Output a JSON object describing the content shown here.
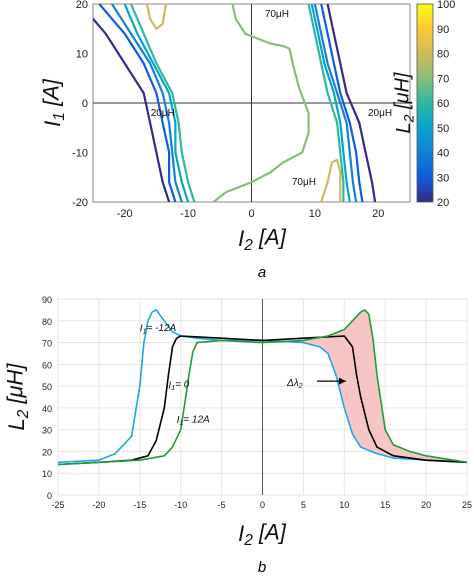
{
  "chart_data": [
    {
      "type": "contour",
      "panel_label": "a",
      "xlabel": "I2 [A]",
      "ylabel": "I1 [A]",
      "colorbar_label": "L2 [μH]",
      "xlim": [
        -25,
        25
      ],
      "ylim": [
        -20,
        20
      ],
      "xticks": [
        -20,
        -10,
        0,
        10,
        20
      ],
      "yticks": [
        -20,
        -10,
        0,
        10,
        20
      ],
      "colorbar_ticks": [
        20,
        30,
        40,
        50,
        60,
        70,
        80,
        90,
        100
      ],
      "colorbar_range": [
        20,
        100
      ],
      "colormap": [
        "#352a87",
        "#0f5cdd",
        "#1481d6",
        "#06a4ca",
        "#2eb7a4",
        "#87bf77",
        "#d1bb59",
        "#fec832",
        "#f9fb0e"
      ],
      "annotations": [
        {
          "text": "70μH",
          "x": -2,
          "y": 18
        },
        {
          "text": "20μH",
          "x": -20,
          "y": -2
        },
        {
          "text": "20μH",
          "x": 19,
          "y": -2
        },
        {
          "text": "70μH",
          "x": 7,
          "y": -16
        }
      ],
      "contours": [
        {
          "level": 20,
          "color": "#352a87",
          "points": [
            [
              -27,
              20
            ],
            [
              -23,
              14
            ],
            [
              -20,
              8
            ],
            [
              -17,
              2
            ],
            [
              -16,
              -4
            ],
            [
              -15,
              -10
            ],
            [
              -14,
              -16
            ],
            [
              -13,
              -20
            ]
          ]
        },
        {
          "level": 30,
          "color": "#0f5cdd",
          "points": [
            [
              -24,
              20
            ],
            [
              -20,
              14
            ],
            [
              -17,
              8
            ],
            [
              -15,
              2
            ],
            [
              -14,
              -4
            ],
            [
              -13,
              -10
            ],
            [
              -13,
              -16
            ],
            [
              -12,
              -20
            ]
          ]
        },
        {
          "level": 40,
          "color": "#1481d6",
          "points": [
            [
              -22,
              20
            ],
            [
              -19,
              14
            ],
            [
              -16,
              8
            ],
            [
              -14,
              2
            ],
            [
              -13,
              -4
            ],
            [
              -12.5,
              -10
            ],
            [
              -12,
              -16
            ],
            [
              -11,
              -20
            ]
          ]
        },
        {
          "level": 50,
          "color": "#06a4ca",
          "points": [
            [
              -20,
              20
            ],
            [
              -18,
              14
            ],
            [
              -15.5,
              8
            ],
            [
              -13,
              2
            ],
            [
              -12,
              -4
            ],
            [
              -12,
              -10
            ],
            [
              -11,
              -16
            ],
            [
              -10,
              -20
            ]
          ]
        },
        {
          "level": 60,
          "color": "#2eb7a4",
          "points": [
            [
              -19,
              20
            ],
            [
              -17,
              14
            ],
            [
              -15,
              8
            ],
            [
              -12.5,
              2
            ],
            [
              -11.5,
              -4
            ],
            [
              -11,
              -10
            ],
            [
              -10,
              -16
            ],
            [
              -9,
              -20
            ]
          ]
        },
        {
          "level": 20,
          "color": "#352a87",
          "points": [
            [
              12,
              20
            ],
            [
              13,
              14
            ],
            [
              14,
              8
            ],
            [
              15,
              2
            ],
            [
              17,
              -4
            ],
            [
              18,
              -10
            ],
            [
              19,
              -16
            ],
            [
              19.5,
              -20
            ]
          ]
        },
        {
          "level": 30,
          "color": "#0f5cdd",
          "points": [
            [
              11,
              20
            ],
            [
              12,
              14
            ],
            [
              13,
              8
            ],
            [
              14,
              2
            ],
            [
              15.5,
              -4
            ],
            [
              16.5,
              -10
            ],
            [
              17,
              -16
            ],
            [
              17.5,
              -20
            ]
          ]
        },
        {
          "level": 40,
          "color": "#1481d6",
          "points": [
            [
              10,
              20
            ],
            [
              11,
              14
            ],
            [
              12,
              8
            ],
            [
              13.5,
              2
            ],
            [
              15,
              -4
            ],
            [
              15.5,
              -10
            ],
            [
              16,
              -16
            ],
            [
              16.5,
              -20
            ]
          ]
        },
        {
          "level": 50,
          "color": "#06a4ca",
          "points": [
            [
              9.5,
              20
            ],
            [
              10.5,
              14
            ],
            [
              11.5,
              8
            ],
            [
              13,
              2
            ],
            [
              14,
              -4
            ],
            [
              14.5,
              -10
            ],
            [
              15,
              -16
            ],
            [
              15.5,
              -20
            ]
          ]
        },
        {
          "level": 60,
          "color": "#2eb7a4",
          "points": [
            [
              9,
              20
            ],
            [
              10,
              14
            ],
            [
              11,
              8
            ],
            [
              12,
              2
            ],
            [
              13.5,
              -4
            ],
            [
              14,
              -10
            ],
            [
              14.5,
              -16
            ],
            [
              14.5,
              -20
            ]
          ]
        },
        {
          "level": 70,
          "color": "#87bf77",
          "points": [
            [
              -3,
              20
            ],
            [
              -2.5,
              17
            ],
            [
              -1,
              14
            ],
            [
              1,
              13
            ],
            [
              3,
              12
            ],
            [
              5,
              11.5
            ],
            [
              6,
              11
            ],
            [
              6.5,
              8
            ],
            [
              7.5,
              3
            ],
            [
              9,
              -2
            ],
            [
              9,
              -6
            ],
            [
              8,
              -10
            ],
            [
              5,
              -12
            ],
            [
              3,
              -14
            ],
            [
              0,
              -16
            ],
            [
              -2,
              -17
            ],
            [
              -4,
              -18
            ],
            [
              -6,
              -20
            ]
          ]
        },
        {
          "level": 90,
          "color": "#d1bb59",
          "points": [
            [
              -16.5,
              20
            ],
            [
              -16,
              17
            ],
            [
              -15,
              15
            ],
            [
              -14,
              16
            ],
            [
              -13.5,
              20
            ]
          ]
        },
        {
          "level": 90,
          "color": "#d1bb59",
          "points": [
            [
              11,
              -20
            ],
            [
              12,
              -16
            ],
            [
              12.7,
              -12
            ],
            [
              13.5,
              -11.5
            ],
            [
              14,
              -14
            ],
            [
              14,
              -20
            ]
          ]
        }
      ]
    },
    {
      "type": "line",
      "panel_label": "b",
      "xlabel": "I2 [A]",
      "ylabel": "L2 [μH]",
      "xlim": [
        -25,
        25
      ],
      "ylim": [
        0,
        90
      ],
      "xticks": [
        -25,
        -20,
        -15,
        -10,
        -5,
        0,
        5,
        10,
        15,
        20,
        25
      ],
      "yticks": [
        0,
        10,
        20,
        30,
        40,
        50,
        60,
        70,
        80,
        90
      ],
      "fill_between": {
        "color": "#f7c6c4",
        "from_series": 0,
        "to_series": 2,
        "x_range": [
          0,
          25
        ]
      },
      "annotations": [
        {
          "text": "I1= -12A",
          "x": -15,
          "y": 75
        },
        {
          "text": "I1= 0",
          "x": -11.5,
          "y": 49
        },
        {
          "text": "I1= 12A",
          "x": -10.5,
          "y": 33
        },
        {
          "text": "Δλ2",
          "x": 3,
          "y": 50
        }
      ],
      "series": [
        {
          "name": "I1= -12A",
          "color": "#1ea7e0",
          "x": [
            -25,
            -20,
            -18,
            -16,
            -15,
            -14.5,
            -14,
            -13.5,
            -13,
            -12,
            -11,
            -10,
            -8,
            -5,
            0,
            5,
            7,
            8,
            9,
            10,
            11,
            12,
            14,
            16,
            20,
            25
          ],
          "y": [
            15,
            16,
            19,
            27,
            50,
            70,
            80,
            84,
            85,
            80,
            75,
            73,
            72,
            71,
            71,
            70,
            68,
            65,
            55,
            40,
            28,
            22,
            19,
            17,
            16,
            15
          ]
        },
        {
          "name": "I1= 0",
          "color": "#000000",
          "x": [
            -25,
            -20,
            -16,
            -14,
            -13,
            -12,
            -11.5,
            -11,
            -10.5,
            -10,
            -5,
            0,
            5,
            10,
            11,
            11.5,
            12,
            13,
            14,
            16,
            20,
            25
          ],
          "y": [
            14,
            15,
            16,
            18,
            25,
            40,
            55,
            68,
            72,
            73,
            72,
            71,
            72,
            73,
            68,
            55,
            45,
            30,
            22,
            18,
            16,
            15
          ]
        },
        {
          "name": "I1= 12A",
          "color": "#1f9b3c",
          "x": [
            -25,
            -20,
            -15,
            -12,
            -11,
            -10,
            -9.5,
            -9,
            -8.5,
            -8,
            -5,
            0,
            5,
            8,
            10,
            11,
            12,
            12.5,
            13,
            13.5,
            14,
            15,
            16,
            18,
            20,
            25
          ],
          "y": [
            14,
            15,
            16,
            18,
            22,
            30,
            42,
            55,
            66,
            70,
            71,
            70,
            71,
            73,
            76,
            80,
            84,
            85,
            83,
            72,
            55,
            30,
            23,
            20,
            18,
            15
          ]
        }
      ]
    }
  ]
}
